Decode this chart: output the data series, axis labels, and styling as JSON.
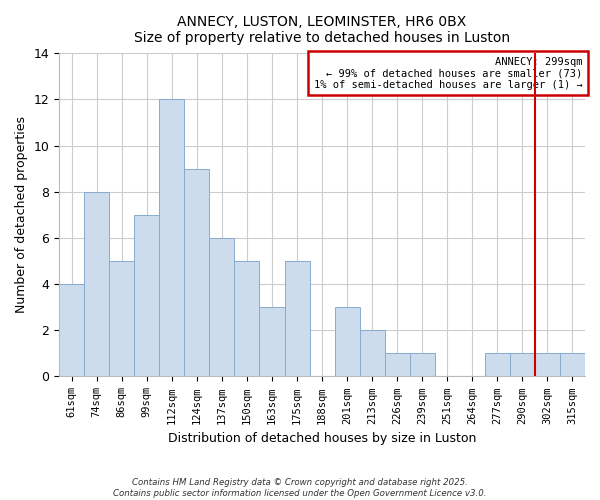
{
  "title": "ANNECY, LUSTON, LEOMINSTER, HR6 0BX",
  "subtitle": "Size of property relative to detached houses in Luston",
  "xlabel": "Distribution of detached houses by size in Luston",
  "ylabel": "Number of detached properties",
  "bar_color": "#ccdcec",
  "bar_edge_color": "#88aacc",
  "categories": [
    "61sqm",
    "74sqm",
    "86sqm",
    "99sqm",
    "112sqm",
    "124sqm",
    "137sqm",
    "150sqm",
    "163sqm",
    "175sqm",
    "188sqm",
    "201sqm",
    "213sqm",
    "226sqm",
    "239sqm",
    "251sqm",
    "264sqm",
    "277sqm",
    "290sqm",
    "302sqm",
    "315sqm"
  ],
  "values": [
    4,
    8,
    5,
    7,
    12,
    9,
    6,
    5,
    3,
    5,
    0,
    3,
    2,
    1,
    1,
    0,
    0,
    1,
    1,
    1,
    1
  ],
  "ylim": [
    0,
    14
  ],
  "yticks": [
    0,
    2,
    4,
    6,
    8,
    10,
    12,
    14
  ],
  "annecy_label": "ANNECY: 299sqm",
  "legend_line1": "← 99% of detached houses are smaller (73)",
  "legend_line2": "1% of semi-detached houses are larger (1) →",
  "annecy_line_idx": 18.5,
  "line_color": "#cc0000",
  "footnote1": "Contains HM Land Registry data © Crown copyright and database right 2025.",
  "footnote2": "Contains public sector information licensed under the Open Government Licence v3.0.",
  "bg_color": "#ffffff",
  "grid_color": "#cccccc"
}
